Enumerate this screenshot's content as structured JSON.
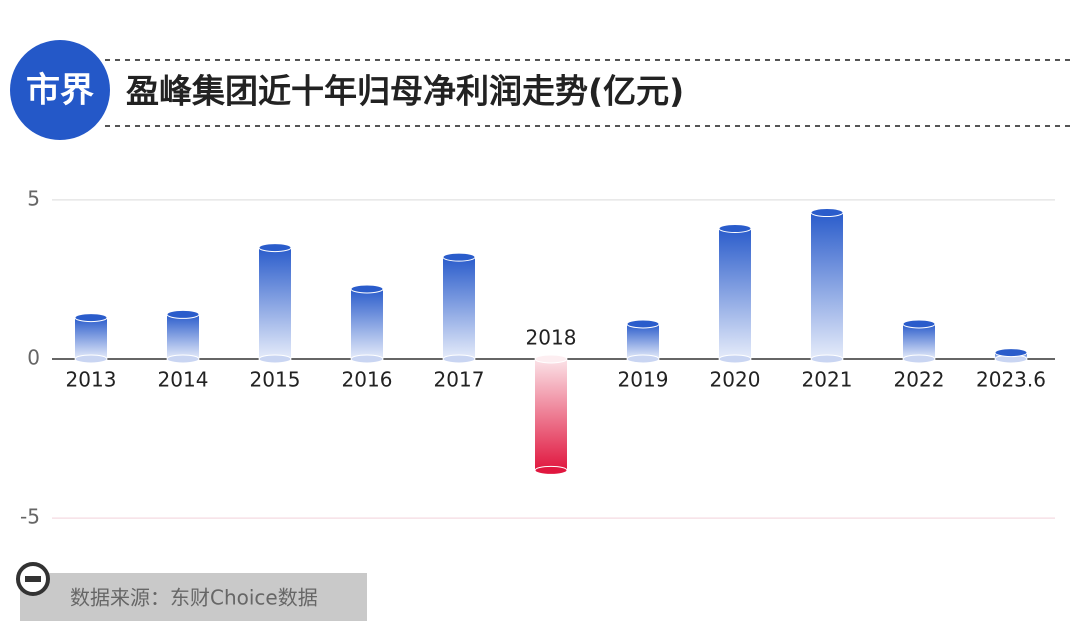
{
  "logo": "市界",
  "chart_data": {
    "type": "bar",
    "title": "盈峰集团近十年归母净利润走势(亿元)",
    "categories": [
      "2013",
      "2014",
      "2015",
      "2016",
      "2017",
      "2018",
      "2019",
      "2020",
      "2021",
      "2022",
      "2023.6"
    ],
    "values": [
      1.3,
      1.4,
      3.5,
      2.2,
      3.2,
      -3.5,
      1.1,
      4.1,
      4.6,
      1.1,
      0.2
    ],
    "positive_color": "#2a5ccb",
    "negative_color": "#e0173f",
    "ylim": [
      -5.5,
      6
    ],
    "yticks": [
      -5,
      0,
      5
    ],
    "grid": true
  },
  "source": "数据来源：东财Choice数据"
}
